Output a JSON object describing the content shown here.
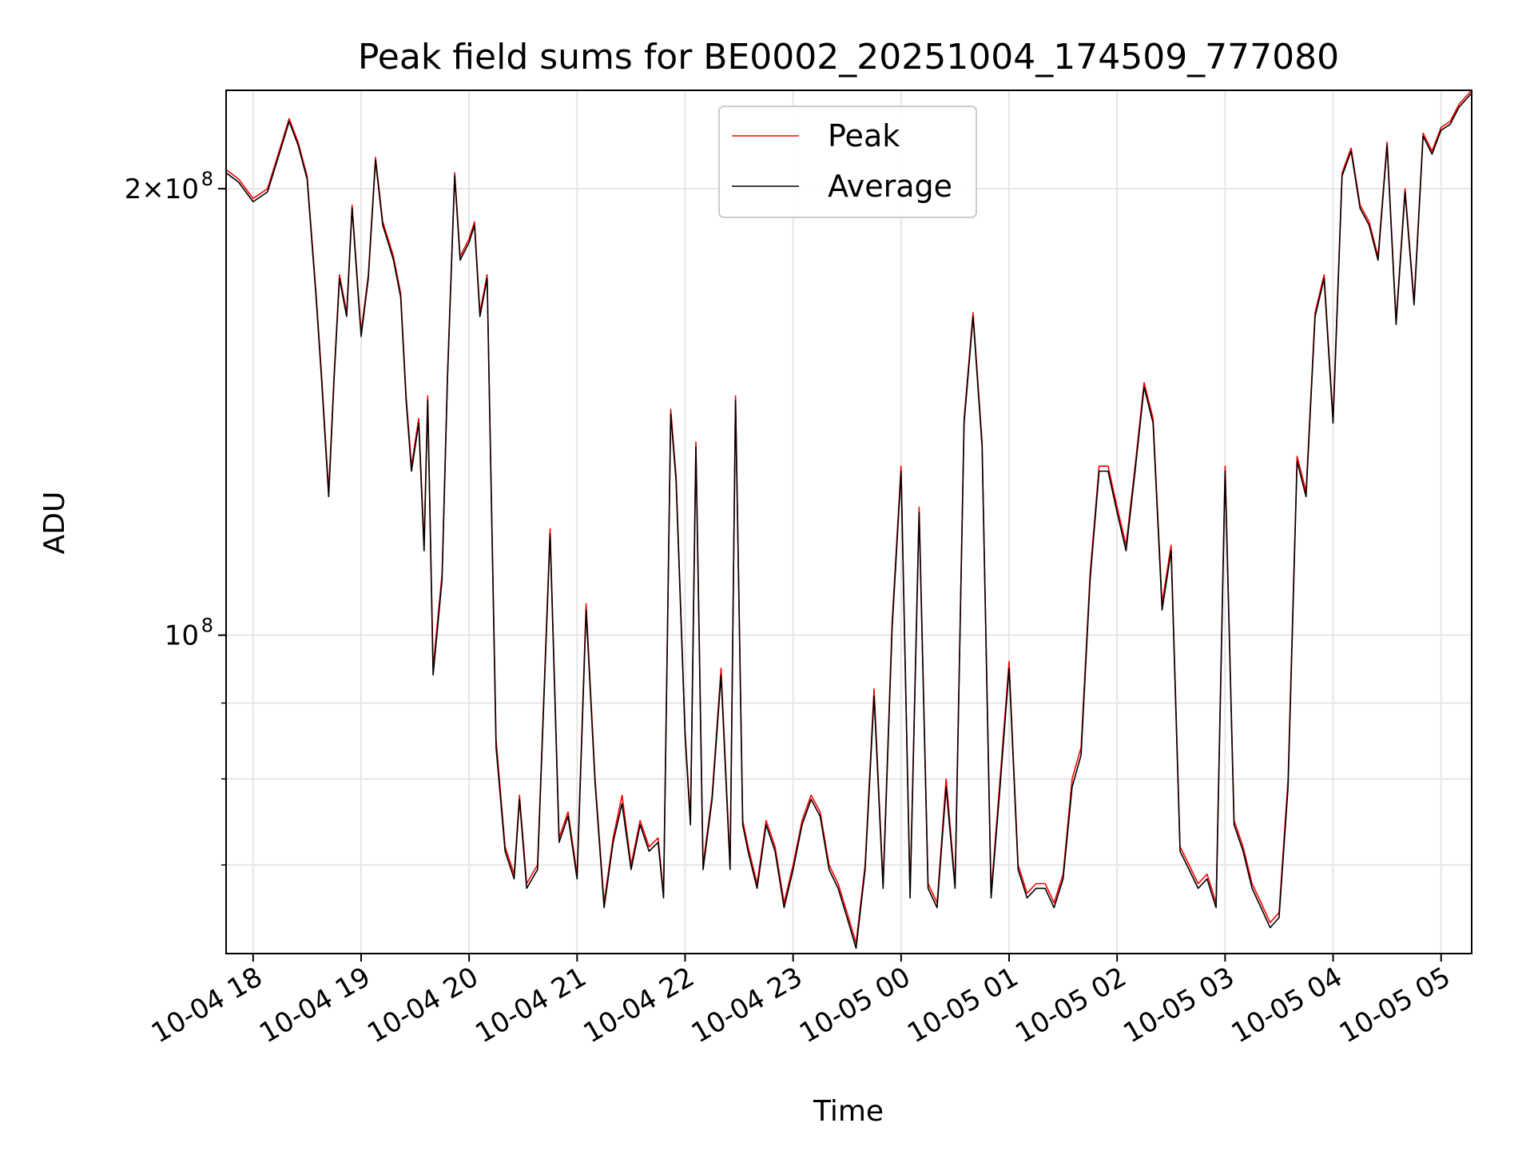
{
  "chart_data": {
    "type": "line",
    "title": "Peak field sums for BE0002_20251004_174509_777080",
    "xlabel": "Time",
    "ylabel": "ADU",
    "y_scale": "log",
    "x_range_hours": [
      "2025-10-04 17:45",
      "2025-10-05 05:17"
    ],
    "ylim": [
      61000000,
      233000000
    ],
    "x_ticks": [
      "10-04 18",
      "10-04 19",
      "10-04 20",
      "10-04 21",
      "10-04 22",
      "10-04 23",
      "10-05 00",
      "10-05 01",
      "10-05 02",
      "10-05 03",
      "10-05 04",
      "10-05 05"
    ],
    "y_tick_labels": [
      {
        "value": 200000000,
        "mantissa": "2×10",
        "exp": "8"
      },
      {
        "value": 100000000,
        "mantissa": "10",
        "exp": "8"
      }
    ],
    "y_minor_ticks": [
      60000000,
      70000000,
      80000000,
      90000000,
      300000000
    ],
    "grid": true,
    "legend": {
      "position": "top-center"
    },
    "colors": {
      "peak": "#ff0000",
      "average": "#000000",
      "grid": "#e6e6e6"
    },
    "series": [
      {
        "name": "Peak",
        "x": [
          "2025-10-04 17:45",
          "2025-10-04 17:52",
          "2025-10-04 18:00",
          "2025-10-04 18:08",
          "2025-10-04 18:15",
          "2025-10-04 18:20",
          "2025-10-04 18:25",
          "2025-10-04 18:30",
          "2025-10-04 18:35",
          "2025-10-04 18:38",
          "2025-10-04 18:42",
          "2025-10-04 18:45",
          "2025-10-04 18:48",
          "2025-10-04 18:52",
          "2025-10-04 18:55",
          "2025-10-04 19:00",
          "2025-10-04 19:04",
          "2025-10-04 19:08",
          "2025-10-04 19:12",
          "2025-10-04 19:15",
          "2025-10-04 19:18",
          "2025-10-04 19:22",
          "2025-10-04 19:25",
          "2025-10-04 19:28",
          "2025-10-04 19:32",
          "2025-10-04 19:35",
          "2025-10-04 19:37",
          "2025-10-04 19:40",
          "2025-10-04 19:45",
          "2025-10-04 19:48",
          "2025-10-04 19:52",
          "2025-10-04 19:55",
          "2025-10-04 20:00",
          "2025-10-04 20:03",
          "2025-10-04 20:06",
          "2025-10-04 20:10",
          "2025-10-04 20:15",
          "2025-10-04 20:20",
          "2025-10-04 20:25",
          "2025-10-04 20:28",
          "2025-10-04 20:32",
          "2025-10-04 20:38",
          "2025-10-04 20:45",
          "2025-10-04 20:50",
          "2025-10-04 20:55",
          "2025-10-04 21:00",
          "2025-10-04 21:05",
          "2025-10-04 21:10",
          "2025-10-04 21:15",
          "2025-10-04 21:20",
          "2025-10-04 21:25",
          "2025-10-04 21:30",
          "2025-10-04 21:35",
          "2025-10-04 21:40",
          "2025-10-04 21:45",
          "2025-10-04 21:48",
          "2025-10-04 21:52",
          "2025-10-04 21:55",
          "2025-10-04 22:00",
          "2025-10-04 22:03",
          "2025-10-04 22:06",
          "2025-10-04 22:10",
          "2025-10-04 22:15",
          "2025-10-04 22:20",
          "2025-10-04 22:25",
          "2025-10-04 22:28",
          "2025-10-04 22:32",
          "2025-10-04 22:35",
          "2025-10-04 22:40",
          "2025-10-04 22:45",
          "2025-10-04 22:50",
          "2025-10-04 22:55",
          "2025-10-04 23:00",
          "2025-10-04 23:05",
          "2025-10-04 23:10",
          "2025-10-04 23:15",
          "2025-10-04 23:20",
          "2025-10-04 23:25",
          "2025-10-04 23:30",
          "2025-10-04 23:35",
          "2025-10-04 23:40",
          "2025-10-04 23:45",
          "2025-10-04 23:50",
          "2025-10-04 23:55",
          "2025-10-05 00:00",
          "2025-10-05 00:05",
          "2025-10-05 00:10",
          "2025-10-05 00:15",
          "2025-10-05 00:20",
          "2025-10-05 00:25",
          "2025-10-05 00:30",
          "2025-10-05 00:35",
          "2025-10-05 00:40",
          "2025-10-05 00:45",
          "2025-10-05 00:50",
          "2025-10-05 00:55",
          "2025-10-05 01:00",
          "2025-10-05 01:05",
          "2025-10-05 01:10",
          "2025-10-05 01:15",
          "2025-10-05 01:20",
          "2025-10-05 01:25",
          "2025-10-05 01:30",
          "2025-10-05 01:35",
          "2025-10-05 01:40",
          "2025-10-05 01:45",
          "2025-10-05 01:50",
          "2025-10-05 01:55",
          "2025-10-05 02:00",
          "2025-10-05 02:05",
          "2025-10-05 02:10",
          "2025-10-05 02:15",
          "2025-10-05 02:20",
          "2025-10-05 02:25",
          "2025-10-05 02:30",
          "2025-10-05 02:35",
          "2025-10-05 02:40",
          "2025-10-05 02:45",
          "2025-10-05 02:50",
          "2025-10-05 02:55",
          "2025-10-05 03:00",
          "2025-10-05 03:05",
          "2025-10-05 03:10",
          "2025-10-05 03:15",
          "2025-10-05 03:20",
          "2025-10-05 03:25",
          "2025-10-05 03:30",
          "2025-10-05 03:35",
          "2025-10-05 03:40",
          "2025-10-05 03:45",
          "2025-10-05 03:50",
          "2025-10-05 03:55",
          "2025-10-05 04:00",
          "2025-10-05 04:05",
          "2025-10-05 04:10",
          "2025-10-05 04:15",
          "2025-10-05 04:20",
          "2025-10-05 04:25",
          "2025-10-05 04:30",
          "2025-10-05 04:35",
          "2025-10-05 04:40",
          "2025-10-05 04:45",
          "2025-10-05 04:50",
          "2025-10-05 04:55",
          "2025-10-05 05:00",
          "2025-10-05 05:05",
          "2025-10-05 05:10",
          "2025-10-05 05:17"
        ],
        "y": [
          206000000,
          203000000,
          197000000,
          200000000,
          213000000,
          223000000,
          215000000,
          204000000,
          170000000,
          150000000,
          125000000,
          150000000,
          175000000,
          165000000,
          195000000,
          160000000,
          175000000,
          210000000,
          190000000,
          185000000,
          180000000,
          170000000,
          145000000,
          130000000,
          140000000,
          115000000,
          145000000,
          95000000,
          110000000,
          150000000,
          205000000,
          180000000,
          185000000,
          190000000,
          165000000,
          175000000,
          85000000,
          72000000,
          69000000,
          78000000,
          68000000,
          70000000,
          118000000,
          73000000,
          76000000,
          69000000,
          105000000,
          80000000,
          66000000,
          73000000,
          78000000,
          70000000,
          75000000,
          72000000,
          73000000,
          67000000,
          142000000,
          128000000,
          86000000,
          75000000,
          135000000,
          70000000,
          78000000,
          95000000,
          70000000,
          145000000,
          75000000,
          72000000,
          68000000,
          75000000,
          72000000,
          66000000,
          70000000,
          75000000,
          78000000,
          76000000,
          70000000,
          68000000,
          65000000,
          62000000,
          70000000,
          92000000,
          68000000,
          102000000,
          130000000,
          67000000,
          122000000,
          68000000,
          66000000,
          80000000,
          68000000,
          140000000,
          165000000,
          135000000,
          67000000,
          80000000,
          96000000,
          70000000,
          67000000,
          68000000,
          68000000,
          66000000,
          69000000,
          80000000,
          84000000,
          110000000,
          130000000,
          130000000,
          122000000,
          115000000,
          130000000,
          148000000,
          140000000,
          105000000,
          115000000,
          72000000,
          70000000,
          68000000,
          69000000,
          66000000,
          130000000,
          75000000,
          72000000,
          68000000,
          66000000,
          64000000,
          65000000,
          80000000,
          132000000,
          125000000,
          165000000,
          175000000,
          140000000,
          205000000,
          213000000,
          195000000,
          190000000,
          180000000,
          215000000,
          163000000,
          200000000,
          168000000,
          218000000,
          212000000,
          220000000,
          222000000,
          228000000,
          233000000
        ],
        "color": "#ff0000"
      },
      {
        "name": "Average",
        "x": [
          "2025-10-04 17:45",
          "2025-10-04 17:52",
          "2025-10-04 18:00",
          "2025-10-04 18:08",
          "2025-10-04 18:15",
          "2025-10-04 18:20",
          "2025-10-04 18:25",
          "2025-10-04 18:30",
          "2025-10-04 18:35",
          "2025-10-04 18:38",
          "2025-10-04 18:42",
          "2025-10-04 18:45",
          "2025-10-04 18:48",
          "2025-10-04 18:52",
          "2025-10-04 18:55",
          "2025-10-04 19:00",
          "2025-10-04 19:04",
          "2025-10-04 19:08",
          "2025-10-04 19:12",
          "2025-10-04 19:15",
          "2025-10-04 19:18",
          "2025-10-04 19:22",
          "2025-10-04 19:25",
          "2025-10-04 19:28",
          "2025-10-04 19:32",
          "2025-10-04 19:35",
          "2025-10-04 19:37",
          "2025-10-04 19:40",
          "2025-10-04 19:45",
          "2025-10-04 19:48",
          "2025-10-04 19:52",
          "2025-10-04 19:55",
          "2025-10-04 20:00",
          "2025-10-04 20:03",
          "2025-10-04 20:06",
          "2025-10-04 20:10",
          "2025-10-04 20:15",
          "2025-10-04 20:20",
          "2025-10-04 20:25",
          "2025-10-04 20:28",
          "2025-10-04 20:32",
          "2025-10-04 20:38",
          "2025-10-04 20:45",
          "2025-10-04 20:50",
          "2025-10-04 20:55",
          "2025-10-04 21:00",
          "2025-10-04 21:05",
          "2025-10-04 21:10",
          "2025-10-04 21:15",
          "2025-10-04 21:20",
          "2025-10-04 21:25",
          "2025-10-04 21:30",
          "2025-10-04 21:35",
          "2025-10-04 21:40",
          "2025-10-04 21:45",
          "2025-10-04 21:48",
          "2025-10-04 21:52",
          "2025-10-04 21:55",
          "2025-10-04 22:00",
          "2025-10-04 22:03",
          "2025-10-04 22:06",
          "2025-10-04 22:10",
          "2025-10-04 22:15",
          "2025-10-04 22:20",
          "2025-10-04 22:25",
          "2025-10-04 22:28",
          "2025-10-04 22:32",
          "2025-10-04 22:35",
          "2025-10-04 22:40",
          "2025-10-04 22:45",
          "2025-10-04 22:50",
          "2025-10-04 22:55",
          "2025-10-04 23:00",
          "2025-10-04 23:05",
          "2025-10-04 23:10",
          "2025-10-04 23:15",
          "2025-10-04 23:20",
          "2025-10-04 23:25",
          "2025-10-04 23:30",
          "2025-10-04 23:35",
          "2025-10-04 23:40",
          "2025-10-04 23:45",
          "2025-10-04 23:50",
          "2025-10-04 23:55",
          "2025-10-05 00:00",
          "2025-10-05 00:05",
          "2025-10-05 00:10",
          "2025-10-05 00:15",
          "2025-10-05 00:20",
          "2025-10-05 00:25",
          "2025-10-05 00:30",
          "2025-10-05 00:35",
          "2025-10-05 00:40",
          "2025-10-05 00:45",
          "2025-10-05 00:50",
          "2025-10-05 00:55",
          "2025-10-05 01:00",
          "2025-10-05 01:05",
          "2025-10-05 01:10",
          "2025-10-05 01:15",
          "2025-10-05 01:20",
          "2025-10-05 01:25",
          "2025-10-05 01:30",
          "2025-10-05 01:35",
          "2025-10-05 01:40",
          "2025-10-05 01:45",
          "2025-10-05 01:50",
          "2025-10-05 01:55",
          "2025-10-05 02:00",
          "2025-10-05 02:05",
          "2025-10-05 02:10",
          "2025-10-05 02:15",
          "2025-10-05 02:20",
          "2025-10-05 02:25",
          "2025-10-05 02:30",
          "2025-10-05 02:35",
          "2025-10-05 02:40",
          "2025-10-05 02:45",
          "2025-10-05 02:50",
          "2025-10-05 02:55",
          "2025-10-05 03:00",
          "2025-10-05 03:05",
          "2025-10-05 03:10",
          "2025-10-05 03:15",
          "2025-10-05 03:20",
          "2025-10-05 03:25",
          "2025-10-05 03:30",
          "2025-10-05 03:35",
          "2025-10-05 03:40",
          "2025-10-05 03:45",
          "2025-10-05 03:50",
          "2025-10-05 03:55",
          "2025-10-05 04:00",
          "2025-10-05 04:05",
          "2025-10-05 04:10",
          "2025-10-05 04:15",
          "2025-10-05 04:20",
          "2025-10-05 04:25",
          "2025-10-05 04:30",
          "2025-10-05 04:35",
          "2025-10-05 04:40",
          "2025-10-05 04:45",
          "2025-10-05 04:50",
          "2025-10-05 04:55",
          "2025-10-05 05:00",
          "2025-10-05 05:05",
          "2025-10-05 05:10",
          "2025-10-05 05:17"
        ],
        "y": [
          205000000,
          202000000,
          196000000,
          199000000,
          212000000,
          222000000,
          214000000,
          203000000,
          169000000,
          149000000,
          124000000,
          149000000,
          174000000,
          164000000,
          194000000,
          159000000,
          174000000,
          209000000,
          189000000,
          184000000,
          179000000,
          169000000,
          144000000,
          129000000,
          139000000,
          114000000,
          144000000,
          94000000,
          109000000,
          149000000,
          204000000,
          179000000,
          184000000,
          189000000,
          164000000,
          174000000,
          84000000,
          71500000,
          68500000,
          77500000,
          67500000,
          69500000,
          117000000,
          72500000,
          75500000,
          68500000,
          104000000,
          79500000,
          65500000,
          72500000,
          77000000,
          69500000,
          74500000,
          71500000,
          72500000,
          66500000,
          141000000,
          127000000,
          85500000,
          74500000,
          134000000,
          69500000,
          77500000,
          94000000,
          69500000,
          144000000,
          74500000,
          71500000,
          67500000,
          74500000,
          71500000,
          65500000,
          69500000,
          74500000,
          77500000,
          75500000,
          69500000,
          67500000,
          64500000,
          61500000,
          69500000,
          91000000,
          67500000,
          101000000,
          129000000,
          66500000,
          121000000,
          67500000,
          65500000,
          79000000,
          67500000,
          139000000,
          164000000,
          134000000,
          66500000,
          79000000,
          95000000,
          69500000,
          66500000,
          67500000,
          67500000,
          65500000,
          68500000,
          79000000,
          83000000,
          109000000,
          129000000,
          129000000,
          121000000,
          114000000,
          129000000,
          147000000,
          139000000,
          104000000,
          114000000,
          71500000,
          69500000,
          67500000,
          68500000,
          65500000,
          129000000,
          74500000,
          71500000,
          67500000,
          65500000,
          63500000,
          64500000,
          79000000,
          131000000,
          124000000,
          164000000,
          174000000,
          139000000,
          204000000,
          212000000,
          194000000,
          189000000,
          179000000,
          214000000,
          162000000,
          199000000,
          167000000,
          217000000,
          211000000,
          219000000,
          221000000,
          227000000,
          232000000
        ],
        "color": "#000000"
      }
    ]
  }
}
